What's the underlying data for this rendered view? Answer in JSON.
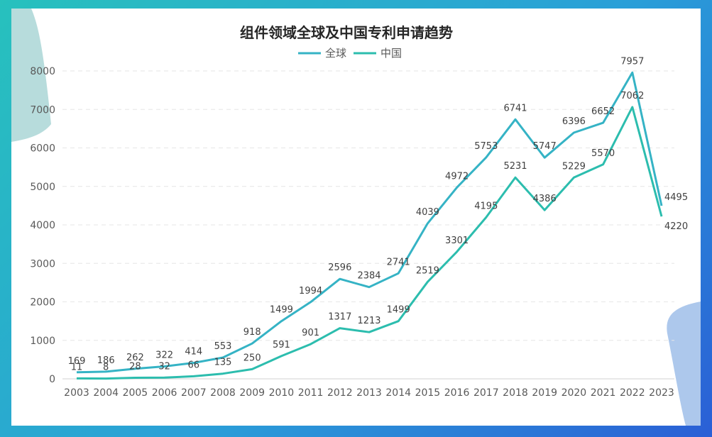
{
  "chart_data": {
    "type": "line",
    "title": "组件领域全球及中国专利申请趋势",
    "xlabel": "",
    "ylabel": "",
    "x": [
      "2003",
      "2004",
      "2005",
      "2006",
      "2007",
      "2008",
      "2009",
      "2010",
      "2011",
      "2012",
      "2013",
      "2014",
      "2015",
      "2016",
      "2017",
      "2018",
      "2019",
      "2020",
      "2021",
      "2022",
      "2023"
    ],
    "yticks": [
      "0",
      "1000",
      "2000",
      "3000",
      "4000",
      "5000",
      "6000",
      "7000",
      "8000"
    ],
    "ylim": [
      0,
      8000
    ],
    "grid": "horizontal dashed",
    "legend_position": "top-center",
    "series": [
      {
        "name": "全球",
        "color": "#35b3c5",
        "values": [
          169,
          186,
          262,
          322,
          414,
          553,
          918,
          1499,
          1994,
          2596,
          2384,
          2741,
          4039,
          4972,
          5753,
          6741,
          5747,
          6396,
          6652,
          7957,
          4495
        ],
        "labels": [
          "169",
          "186",
          "262",
          "322",
          "414",
          "553",
          "918",
          "1499",
          "1994",
          "2596",
          "2384",
          "2741",
          "4039",
          "4972",
          "5753",
          "6741",
          "5747",
          "6396",
          "6652",
          "7957",
          "4495"
        ]
      },
      {
        "name": "中国",
        "color": "#2cbdae",
        "values": [
          11,
          8,
          28,
          32,
          66,
          135,
          250,
          591,
          901,
          1317,
          1213,
          1499,
          2519,
          3301,
          4195,
          5231,
          4386,
          5229,
          5570,
          7062,
          4220
        ],
        "labels": [
          "11",
          "8",
          "28",
          "32",
          "66",
          "135",
          "250",
          "591",
          "901",
          "1317",
          "1213",
          "1499",
          "2519",
          "3301",
          "4195",
          "5231",
          "4386",
          "5229",
          "5570",
          "7062",
          "4220"
        ]
      }
    ]
  }
}
